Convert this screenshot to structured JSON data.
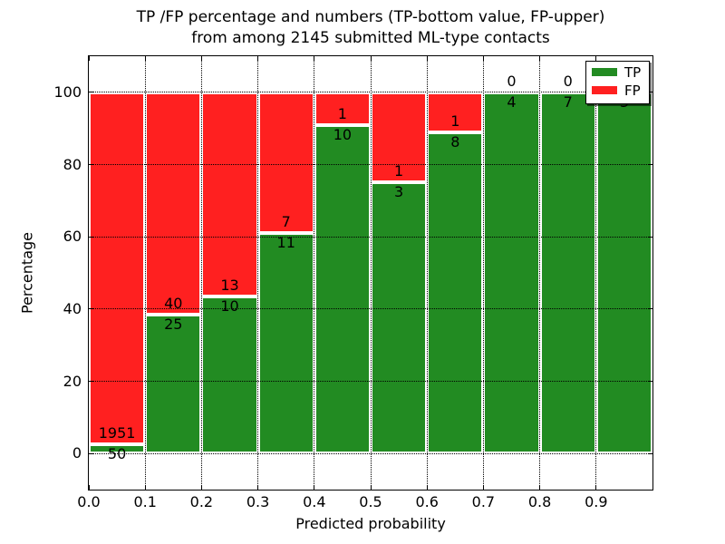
{
  "figure": {
    "title_line1": "TP /FP percentage and numbers (TP-bottom value, FP-upper)",
    "title_line2": "from among 2145 submitted ML-type contacts"
  },
  "axes": {
    "xlabel": "Predicted probability",
    "ylabel": "Percentage",
    "x_tick_labels": [
      "0.0",
      "0.1",
      "0.2",
      "0.3",
      "0.4",
      "0.5",
      "0.6",
      "0.7",
      "0.8",
      "0.9"
    ],
    "x_tick_values": [
      0.0,
      0.1,
      0.2,
      0.3,
      0.4,
      0.5,
      0.6,
      0.7,
      0.8,
      0.9
    ],
    "y_tick_labels": [
      "0",
      "20",
      "40",
      "60",
      "80",
      "100"
    ],
    "y_tick_values": [
      0,
      20,
      40,
      60,
      80,
      100
    ]
  },
  "legend": {
    "items": [
      {
        "label": "TP",
        "color": "#228B22"
      },
      {
        "label": "FP",
        "color": "#FF2020"
      }
    ]
  },
  "chart_data": {
    "type": "bar",
    "variant": "stacked-100-percent",
    "title": "TP /FP percentage and numbers (TP-bottom value, FP-upper) from among 2145 submitted ML-type contacts",
    "xlabel": "Predicted probability",
    "ylabel": "Percentage",
    "xlim": [
      0.0,
      1.0
    ],
    "ylim": [
      -10,
      110
    ],
    "grid": "dotted",
    "legend_position": "upper-right",
    "bin_width": 0.1,
    "bin_starts": [
      0.0,
      0.1,
      0.2,
      0.3,
      0.4,
      0.5,
      0.6,
      0.7,
      0.8,
      0.9
    ],
    "series": [
      {
        "name": "TP",
        "color": "#228B22",
        "counts": [
          50,
          25,
          10,
          11,
          10,
          3,
          8,
          4,
          7,
          3
        ]
      },
      {
        "name": "FP",
        "color": "#FF2020",
        "counts": [
          1951,
          40,
          13,
          7,
          1,
          1,
          1,
          0,
          0,
          0
        ]
      }
    ],
    "tp_percent_per_bin": [
      2.5,
      38.5,
      43.5,
      61.1,
      90.9,
      75.0,
      88.9,
      100.0,
      100.0,
      100.0
    ],
    "total_contacts": 2145
  }
}
